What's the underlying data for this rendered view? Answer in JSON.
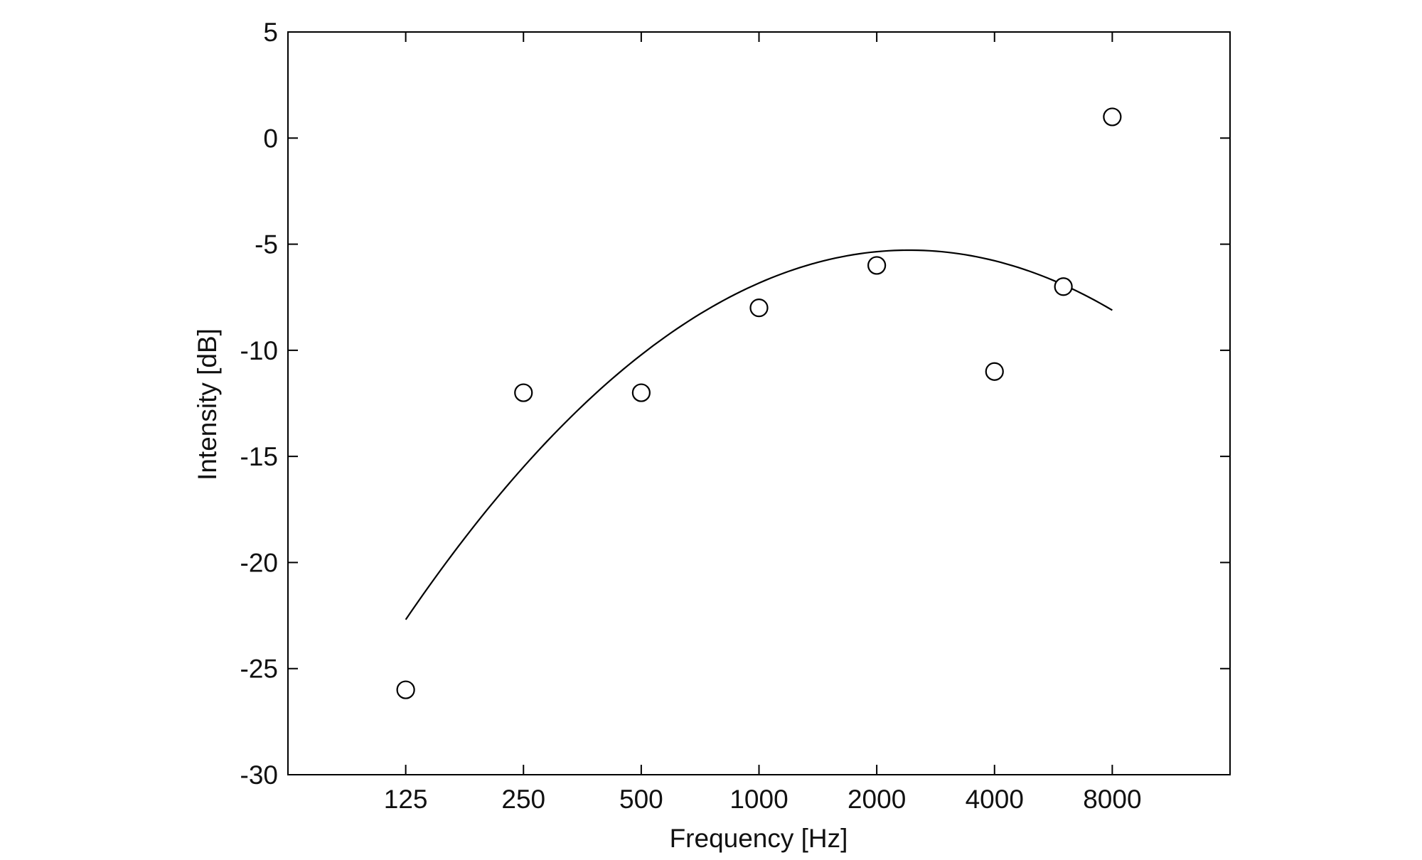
{
  "chart_data": {
    "type": "scatter",
    "title": "",
    "xlabel": "Frequency [Hz]",
    "ylabel": "Intensity [dB]",
    "x_scale": "log2",
    "xlim": [
      62.5,
      16000
    ],
    "ylim": [
      -30,
      5
    ],
    "x_ticks": [
      125,
      250,
      500,
      1000,
      2000,
      4000,
      8000
    ],
    "x_tick_labels": [
      "125",
      "250",
      "500",
      "1000",
      "2000",
      "4000",
      "8000"
    ],
    "y_ticks": [
      5,
      0,
      -5,
      -10,
      -15,
      -20,
      -25,
      -30
    ],
    "y_tick_labels": [
      "5",
      "0",
      "-5",
      "-10",
      "-15",
      "-20",
      "-25",
      "-30"
    ],
    "grid": false,
    "legend": "none",
    "series": [
      {
        "type": "scatter",
        "marker": "open-circle",
        "points": [
          {
            "x": 125,
            "y": -26
          },
          {
            "x": 250,
            "y": -12
          },
          {
            "x": 500,
            "y": -12
          },
          {
            "x": 1000,
            "y": -8
          },
          {
            "x": 2000,
            "y": -6
          },
          {
            "x": 4000,
            "y": -11
          },
          {
            "x": 6000,
            "y": -7
          },
          {
            "x": 8000,
            "y": 1
          }
        ]
      },
      {
        "type": "line",
        "style": "fitted-curve",
        "points": [
          {
            "x": 125,
            "y": -22.9
          },
          {
            "x": 250,
            "y": -15.3
          },
          {
            "x": 500,
            "y": -10.0
          },
          {
            "x": 1000,
            "y": -6.8
          },
          {
            "x": 2000,
            "y": -5.5
          },
          {
            "x": 2800,
            "y": -5.5
          },
          {
            "x": 4000,
            "y": -5.9
          },
          {
            "x": 8000,
            "y": -7.9
          }
        ]
      }
    ],
    "colors": {
      "marks": "#000000",
      "axes": "#000000",
      "background": "#ffffff"
    }
  }
}
